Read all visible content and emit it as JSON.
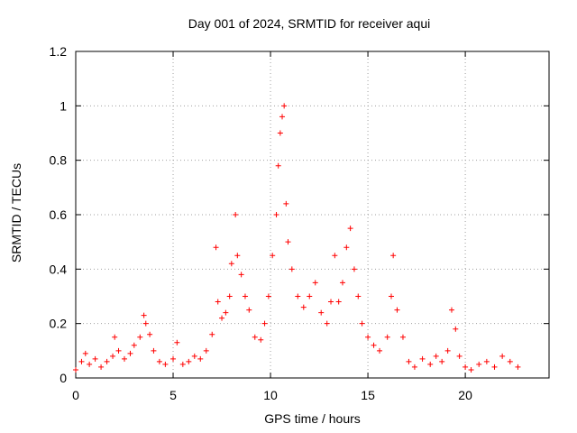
{
  "chart_data": {
    "type": "scatter",
    "title": "Day 001 of 2024, SRMTID for receiver aqui",
    "xlabel": "GPS time / hours",
    "ylabel": "SRMTID / TECUs",
    "xlim": [
      0,
      24.3
    ],
    "ylim": [
      0,
      1.2
    ],
    "xticks": [
      0,
      5,
      10,
      15,
      20
    ],
    "xtick_labels": [
      "0",
      "5",
      "10",
      "15",
      "20"
    ],
    "yticks": [
      0,
      0.2,
      0.4,
      0.6,
      0.8,
      1,
      1.2
    ],
    "ytick_labels": [
      "0",
      "0.2",
      "0.4",
      "0.6",
      "0.8",
      "1",
      "1.2"
    ],
    "grid": true,
    "marker": "+",
    "color": "#ff0000",
    "series": [
      {
        "name": "SRMTID",
        "x": [
          0.0,
          0.3,
          0.5,
          0.7,
          1.0,
          1.3,
          1.6,
          1.9,
          2.0,
          2.2,
          2.5,
          2.8,
          3.0,
          3.3,
          3.5,
          3.6,
          3.8,
          4.0,
          4.3,
          4.6,
          5.0,
          5.2,
          5.5,
          5.8,
          6.1,
          6.4,
          6.7,
          7.0,
          7.2,
          7.3,
          7.5,
          7.7,
          7.9,
          8.0,
          8.2,
          8.3,
          8.5,
          8.7,
          8.9,
          9.2,
          9.5,
          9.7,
          9.9,
          10.1,
          10.3,
          10.4,
          10.5,
          10.6,
          10.7,
          10.8,
          10.9,
          11.1,
          11.4,
          11.7,
          12.0,
          12.3,
          12.6,
          12.9,
          13.1,
          13.3,
          13.5,
          13.7,
          13.9,
          14.1,
          14.3,
          14.5,
          14.7,
          15.0,
          15.3,
          15.6,
          16.0,
          16.2,
          16.3,
          16.5,
          16.8,
          17.1,
          17.4,
          17.8,
          18.2,
          18.5,
          18.8,
          19.1,
          19.3,
          19.5,
          19.7,
          20.0,
          20.3,
          20.7,
          21.1,
          21.5,
          21.9,
          22.3,
          22.7
        ],
        "y": [
          0.03,
          0.06,
          0.09,
          0.05,
          0.07,
          0.04,
          0.06,
          0.08,
          0.15,
          0.1,
          0.07,
          0.09,
          0.12,
          0.15,
          0.23,
          0.2,
          0.16,
          0.1,
          0.06,
          0.05,
          0.07,
          0.13,
          0.05,
          0.06,
          0.08,
          0.07,
          0.1,
          0.16,
          0.48,
          0.28,
          0.22,
          0.24,
          0.3,
          0.42,
          0.6,
          0.45,
          0.38,
          0.3,
          0.25,
          0.15,
          0.14,
          0.2,
          0.3,
          0.45,
          0.6,
          0.78,
          0.9,
          0.96,
          1.0,
          0.64,
          0.5,
          0.4,
          0.3,
          0.26,
          0.3,
          0.35,
          0.24,
          0.2,
          0.28,
          0.45,
          0.28,
          0.35,
          0.48,
          0.55,
          0.4,
          0.3,
          0.2,
          0.15,
          0.12,
          0.1,
          0.15,
          0.3,
          0.45,
          0.25,
          0.15,
          0.06,
          0.04,
          0.07,
          0.05,
          0.08,
          0.06,
          0.1,
          0.25,
          0.18,
          0.08,
          0.04,
          0.03,
          0.05,
          0.06,
          0.04,
          0.08,
          0.06,
          0.04
        ]
      }
    ]
  }
}
